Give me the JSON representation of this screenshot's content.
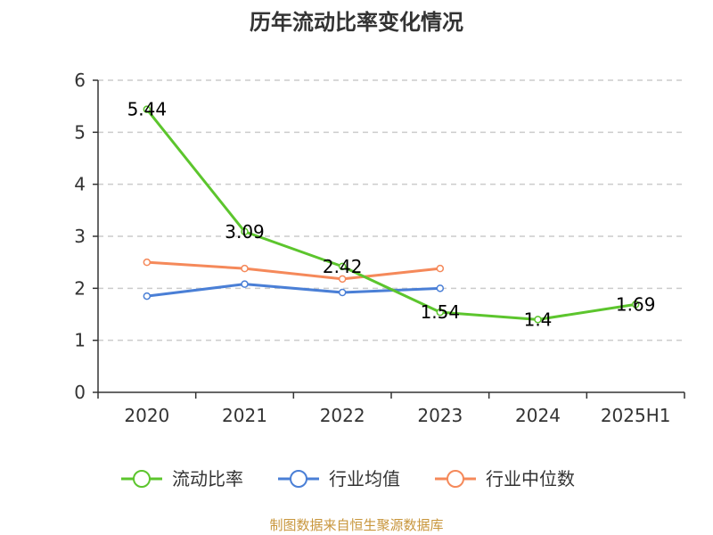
{
  "chart_data": {
    "type": "line",
    "title": "历年流动比率变化情况",
    "categories": [
      "2020",
      "2021",
      "2022",
      "2023",
      "2024",
      "2025H1"
    ],
    "ylim": [
      0,
      6
    ],
    "yticks": [
      "0",
      "1",
      "2",
      "3",
      "4",
      "5",
      "6"
    ],
    "grid": true,
    "legend_position": "bottom",
    "series": [
      {
        "name": "流动比率",
        "color": "#5cc52d",
        "values": [
          5.44,
          3.09,
          2.42,
          1.54,
          1.4,
          1.69
        ],
        "labels": [
          "5.44",
          "3.09",
          "2.42",
          "1.54",
          "1.4",
          "1.69"
        ],
        "show_labels": true
      },
      {
        "name": "行业均值",
        "color": "#4a7fd6",
        "values": [
          1.85,
          2.08,
          1.92,
          2.0,
          null,
          null
        ],
        "show_labels": false
      },
      {
        "name": "行业中位数",
        "color": "#f5895a",
        "values": [
          2.5,
          2.38,
          2.18,
          2.38,
          null,
          null
        ],
        "show_labels": false
      }
    ]
  },
  "source": {
    "text": "制图数据来自恒生聚源数据库",
    "color": "#c8963c"
  }
}
